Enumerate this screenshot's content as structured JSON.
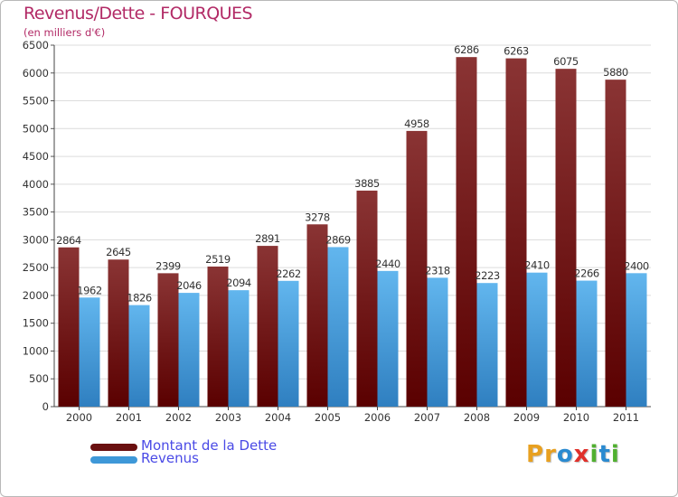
{
  "title": "Revenus/Dette - FOURQUES",
  "subtitle": "(en milliers d'€)",
  "colors": {
    "dette_top": "#8a3434",
    "dette_bottom": "#5a0000",
    "revenus_top": "#62b6ee",
    "revenus_bottom": "#2f7fc0",
    "title": "#b22a66",
    "legend_text": "#4a4ae6",
    "grid": "#dcdcdc"
  },
  "legend": [
    {
      "label": "Montant de la Dette",
      "color": "#6a1010"
    },
    {
      "label": "Revenus",
      "color": "#3e98d8"
    }
  ],
  "logo": {
    "text": "Proxiti",
    "letter_colors": [
      "#e8a020",
      "#e8a020",
      "#2a8ad0",
      "#e0302a",
      "#50b030",
      "#2a8ad0",
      "#50b030"
    ]
  },
  "chart_data": {
    "type": "bar",
    "title": "Revenus/Dette - FOURQUES",
    "subtitle": "(en milliers d'€)",
    "xlabel": "",
    "ylabel": "",
    "ylim": [
      0,
      6500
    ],
    "ytick_step": 500,
    "grid": true,
    "legend_position": "bottom-left",
    "categories": [
      "2000",
      "2001",
      "2002",
      "2003",
      "2004",
      "2005",
      "2006",
      "2007",
      "2008",
      "2009",
      "2010",
      "2011"
    ],
    "series": [
      {
        "name": "Montant de la Dette",
        "values": [
          2864,
          2645,
          2399,
          2519,
          2891,
          3278,
          3885,
          4958,
          6286,
          6263,
          6075,
          5880
        ]
      },
      {
        "name": "Revenus",
        "values": [
          1962,
          1826,
          2046,
          2094,
          2262,
          2869,
          2440,
          2318,
          2223,
          2410,
          2266,
          2400
        ]
      }
    ]
  }
}
